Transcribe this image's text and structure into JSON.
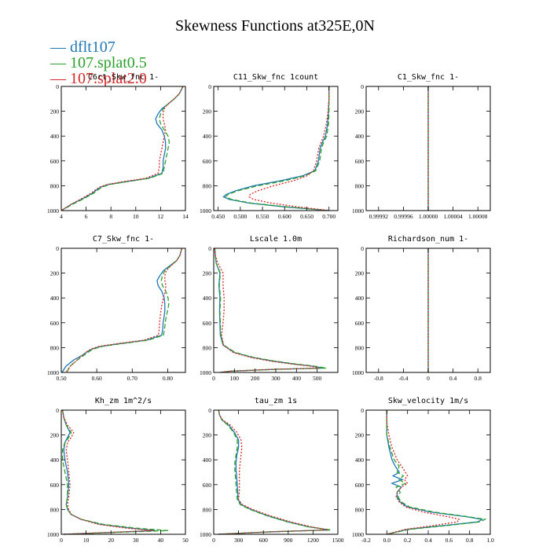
{
  "title": "Skewness Functions at325E,0N",
  "legend": [
    {
      "label": "dflt107",
      "color": "#1f77b4",
      "dash": ""
    },
    {
      "label": "107.splat0.5",
      "color": "#2ca02c",
      "dash": "6,3"
    },
    {
      "label": "107.splat2.0",
      "color": "#d62728",
      "dash": "2,2"
    }
  ],
  "chart_data": [
    {
      "type": "line",
      "title": "C6rt_Skw_fnc  1-",
      "xlim": [
        4,
        14
      ],
      "xticks": [
        4,
        6,
        8,
        10,
        12,
        14
      ],
      "ylim": [
        1000,
        0
      ],
      "yticks": [
        0,
        200,
        400,
        600,
        800,
        1000
      ],
      "y": [
        0,
        20,
        60,
        100,
        150,
        180,
        220,
        260,
        300,
        350,
        400,
        450,
        500,
        550,
        600,
        650,
        700,
        740,
        770,
        790,
        810,
        830,
        860,
        900,
        950,
        1000
      ],
      "series": [
        {
          "name": "dflt107",
          "x": [
            13.8,
            13.7,
            13.5,
            13.1,
            12.5,
            12.1,
            11.8,
            11.6,
            11.7,
            12.1,
            12.3,
            12.4,
            12.4,
            12.3,
            12.2,
            12.2,
            12.1,
            11.0,
            9.0,
            7.8,
            7.2,
            6.9,
            6.5,
            5.8,
            4.8,
            4.0
          ]
        },
        {
          "name": "107.splat0.5",
          "x": [
            13.8,
            13.7,
            13.5,
            13.1,
            12.5,
            12.2,
            12.0,
            11.9,
            12.0,
            12.3,
            12.6,
            12.7,
            12.6,
            12.5,
            12.4,
            12.3,
            12.2,
            11.1,
            9.1,
            7.9,
            7.3,
            7.0,
            6.6,
            5.9,
            4.9,
            4.0
          ]
        },
        {
          "name": "107.splat2.0",
          "x": [
            13.8,
            13.7,
            13.5,
            13.1,
            12.5,
            12.3,
            12.2,
            12.2,
            12.3,
            12.4,
            12.3,
            12.2,
            12.1,
            12.0,
            11.9,
            11.9,
            11.8,
            10.8,
            8.8,
            7.7,
            7.1,
            6.8,
            6.4,
            5.7,
            4.8,
            4.0
          ]
        }
      ]
    },
    {
      "type": "line",
      "title": "C11_Skw_fnc  1count",
      "xlim": [
        0.44,
        0.72
      ],
      "xticks": [
        0.45,
        0.5,
        0.55,
        0.6,
        0.65,
        0.7
      ],
      "xticklabels": [
        "0.450",
        "0.500",
        "0.550",
        "0.600",
        "0.650",
        "0.700"
      ],
      "ylim": [
        1000,
        0
      ],
      "yticks": [
        0,
        200,
        400,
        600,
        800,
        1000
      ],
      "y": [
        0,
        100,
        200,
        300,
        400,
        450,
        500,
        600,
        680,
        720,
        760,
        800,
        840,
        870,
        890,
        910,
        940,
        970,
        1000
      ],
      "series": [
        {
          "name": "dflt107",
          "x": [
            0.7,
            0.7,
            0.699,
            0.697,
            0.692,
            0.685,
            0.68,
            0.676,
            0.668,
            0.64,
            0.59,
            0.53,
            0.49,
            0.468,
            0.462,
            0.475,
            0.52,
            0.6,
            0.7
          ]
        },
        {
          "name": "107.splat0.5",
          "x": [
            0.7,
            0.7,
            0.7,
            0.699,
            0.695,
            0.688,
            0.683,
            0.679,
            0.67,
            0.645,
            0.6,
            0.54,
            0.495,
            0.472,
            0.467,
            0.48,
            0.525,
            0.605,
            0.7
          ]
        },
        {
          "name": "107.splat2.0",
          "x": [
            0.7,
            0.7,
            0.698,
            0.694,
            0.688,
            0.682,
            0.677,
            0.672,
            0.665,
            0.65,
            0.62,
            0.575,
            0.54,
            0.522,
            0.52,
            0.53,
            0.57,
            0.63,
            0.7
          ]
        }
      ]
    },
    {
      "type": "line",
      "title": "C1_Skw_fnc  1-",
      "xlim": [
        0.9999,
        1.0001
      ],
      "xticks": [
        0.99992,
        0.99996,
        1.0,
        1.00004,
        1.00008
      ],
      "xticklabels": [
        "0.99992",
        "0.99996",
        "1.00000",
        "1.00004",
        "1.00008"
      ],
      "ylim": [
        1000,
        0
      ],
      "yticks": [
        0,
        200,
        400,
        600,
        800,
        1000
      ],
      "y": [
        0,
        1000
      ],
      "series": [
        {
          "name": "dflt107",
          "x": [
            1.0,
            1.0
          ]
        },
        {
          "name": "107.splat0.5",
          "x": [
            1.0,
            1.0
          ]
        },
        {
          "name": "107.splat2.0",
          "x": [
            1.0,
            1.0
          ]
        }
      ]
    },
    {
      "type": "line",
      "title": "C7_Skw_fnc  1-",
      "xlim": [
        0.5,
        0.85
      ],
      "xticks": [
        0.5,
        0.6,
        0.7,
        0.8
      ],
      "xticklabels": [
        "0.50",
        "0.60",
        "0.70",
        "0.80"
      ],
      "ylim": [
        1000,
        0
      ],
      "yticks": [
        0,
        200,
        400,
        600,
        800,
        1000
      ],
      "y": [
        0,
        20,
        60,
        100,
        150,
        180,
        220,
        260,
        300,
        350,
        400,
        450,
        500,
        550,
        600,
        650,
        700,
        740,
        770,
        790,
        810,
        830,
        860,
        900,
        950,
        1000
      ],
      "series": [
        {
          "name": "dflt107",
          "x": [
            0.84,
            0.838,
            0.834,
            0.825,
            0.802,
            0.788,
            0.778,
            0.77,
            0.773,
            0.784,
            0.79,
            0.792,
            0.792,
            0.79,
            0.787,
            0.786,
            0.783,
            0.74,
            0.66,
            0.612,
            0.588,
            0.575,
            0.56,
            0.535,
            0.513,
            0.502
          ]
        },
        {
          "name": "107.splat0.5",
          "x": [
            0.84,
            0.838,
            0.834,
            0.825,
            0.804,
            0.792,
            0.785,
            0.782,
            0.785,
            0.795,
            0.801,
            0.803,
            0.8,
            0.796,
            0.793,
            0.791,
            0.788,
            0.745,
            0.665,
            0.616,
            0.592,
            0.579,
            0.565,
            0.545,
            0.525,
            0.515
          ]
        },
        {
          "name": "107.splat2.0",
          "x": [
            0.84,
            0.838,
            0.834,
            0.825,
            0.806,
            0.796,
            0.792,
            0.792,
            0.795,
            0.793,
            0.788,
            0.784,
            0.781,
            0.779,
            0.777,
            0.776,
            0.774,
            0.733,
            0.653,
            0.607,
            0.585,
            0.573,
            0.56,
            0.545,
            0.525,
            0.513
          ]
        }
      ]
    },
    {
      "type": "line",
      "title": "Lscale  1.0m",
      "xlim": [
        0,
        600
      ],
      "xticks": [
        0,
        100,
        200,
        300,
        400,
        500
      ],
      "ylim": [
        1000,
        0
      ],
      "yticks": [
        0,
        200,
        400,
        600,
        800,
        1000
      ],
      "y": [
        0,
        60,
        120,
        200,
        300,
        400,
        500,
        600,
        700,
        780,
        840,
        880,
        910,
        935,
        950,
        965,
        975,
        990,
        1000
      ],
      "series": [
        {
          "name": "dflt107",
          "x": [
            5,
            8,
            12,
            30,
            25,
            30,
            28,
            30,
            32,
            45,
            100,
            190,
            290,
            400,
            480,
            530,
            300,
            80,
            30
          ]
        },
        {
          "name": "107.splat0.5",
          "x": [
            5,
            8,
            12,
            32,
            27,
            33,
            30,
            32,
            34,
            48,
            105,
            195,
            300,
            410,
            490,
            545,
            310,
            85,
            30
          ]
        },
        {
          "name": "107.splat2.0",
          "x": [
            5,
            8,
            20,
            45,
            45,
            50,
            50,
            45,
            38,
            47,
            95,
            180,
            280,
            390,
            470,
            510,
            280,
            75,
            30
          ]
        }
      ]
    },
    {
      "type": "line",
      "title": "Richardson_num  1-",
      "xlim": [
        -1.0,
        1.0
      ],
      "xticks": [
        -0.8,
        -0.4,
        0,
        0.4,
        0.8
      ],
      "xticklabels": [
        "-0.8",
        "-0.4",
        "0",
        "0.4",
        "0.8"
      ],
      "ylim": [
        1000,
        0
      ],
      "yticks": [
        0,
        200,
        400,
        600,
        800,
        1000
      ],
      "y": [
        0,
        1000
      ],
      "series": [
        {
          "name": "dflt107",
          "x": [
            0,
            0
          ]
        },
        {
          "name": "107.splat0.5",
          "x": [
            0,
            0
          ]
        },
        {
          "name": "107.splat2.0",
          "x": [
            0,
            0
          ]
        }
      ]
    },
    {
      "type": "line",
      "title": "Kh_zm   1m^2/s",
      "xlim": [
        0,
        50
      ],
      "xticks": [
        0,
        10,
        20,
        30,
        40,
        50
      ],
      "ylim": [
        1000,
        0
      ],
      "yticks": [
        0,
        200,
        400,
        600,
        800,
        1000
      ],
      "y": [
        0,
        60,
        120,
        180,
        220,
        260,
        320,
        400,
        500,
        600,
        700,
        760,
        800,
        840,
        880,
        920,
        950,
        970,
        985,
        1000
      ],
      "series": [
        {
          "name": "dflt107",
          "x": [
            0.5,
            1,
            2,
            3.5,
            2.5,
            1.5,
            1,
            1.5,
            2.5,
            3,
            2.5,
            2,
            2.5,
            4,
            8,
            16,
            28,
            38,
            20,
            1
          ]
        },
        {
          "name": "107.splat0.5",
          "x": [
            0.5,
            1,
            2,
            4,
            3,
            1.5,
            0.5,
            0.5,
            1.5,
            2.5,
            2.5,
            2,
            2.5,
            4,
            8,
            17,
            30,
            43,
            22,
            1
          ]
        },
        {
          "name": "107.splat2.0",
          "x": [
            0.5,
            1,
            2.5,
            5,
            4,
            2.5,
            2,
            2.5,
            3,
            3.5,
            3,
            2.5,
            3,
            4,
            8,
            15,
            26,
            37,
            19,
            1
          ]
        }
      ]
    },
    {
      "type": "line",
      "title": "tau_zm   1s",
      "xlim": [
        0,
        1500
      ],
      "xticks": [
        0,
        300,
        600,
        900,
        1200,
        1500
      ],
      "ylim": [
        1000,
        0
      ],
      "yticks": [
        0,
        200,
        400,
        600,
        800,
        1000
      ],
      "y": [
        0,
        40,
        80,
        120,
        180,
        240,
        300,
        360,
        420,
        480,
        560,
        650,
        720,
        760,
        800,
        850,
        900,
        940,
        965,
        980,
        1000
      ],
      "series": [
        {
          "name": "dflt107",
          "x": [
            60,
            70,
            100,
            180,
            250,
            300,
            300,
            280,
            270,
            270,
            280,
            290,
            295,
            330,
            450,
            650,
            900,
            1150,
            1400,
            700,
            50
          ]
        },
        {
          "name": "107.splat0.5",
          "x": [
            60,
            70,
            100,
            170,
            240,
            285,
            285,
            270,
            255,
            255,
            265,
            275,
            285,
            320,
            440,
            640,
            890,
            1140,
            1420,
            720,
            50
          ]
        },
        {
          "name": "107.splat2.0",
          "x": [
            60,
            70,
            110,
            200,
            280,
            330,
            340,
            330,
            320,
            310,
            310,
            310,
            300,
            345,
            470,
            680,
            930,
            1180,
            1380,
            690,
            50
          ]
        }
      ]
    },
    {
      "type": "line",
      "title": "Skw_velocity   1m/s",
      "xlim": [
        -0.2,
        1.0
      ],
      "xticks": [
        -0.2,
        0,
        0.2,
        0.4,
        0.6,
        0.8,
        1.0
      ],
      "xticklabels": [
        "-0.2",
        "0.0",
        "0.2",
        "0.4",
        "0.6",
        "0.8",
        "1.0"
      ],
      "ylim": [
        1000,
        0
      ],
      "yticks": [
        0,
        200,
        400,
        600,
        800,
        1000
      ],
      "y": [
        0,
        100,
        200,
        300,
        400,
        450,
        500,
        530,
        560,
        590,
        620,
        660,
        700,
        740,
        780,
        820,
        860,
        880,
        900,
        930,
        960,
        1000
      ],
      "series": [
        {
          "name": "dflt107",
          "x": [
            0,
            0,
            0,
            0.02,
            0.05,
            0.08,
            0.12,
            0.06,
            0.15,
            0.05,
            0.14,
            0.1,
            0.1,
            0.13,
            0.2,
            0.42,
            0.78,
            0.92,
            0.88,
            0.55,
            0.2,
            0
          ]
        },
        {
          "name": "107.splat0.5",
          "x": [
            0,
            0,
            0,
            0.03,
            0.07,
            0.12,
            0.1,
            0.16,
            0.12,
            0.18,
            0.09,
            0.13,
            0.11,
            0.14,
            0.22,
            0.45,
            0.8,
            0.95,
            0.9,
            0.58,
            0.22,
            0
          ]
        },
        {
          "name": "107.splat2.0",
          "x": [
            0,
            0,
            0.02,
            0.05,
            0.1,
            0.14,
            0.18,
            0.2,
            0.17,
            0.2,
            0.14,
            0.1,
            0.09,
            0.12,
            0.18,
            0.35,
            0.6,
            0.7,
            0.68,
            0.45,
            0.18,
            0
          ]
        }
      ]
    }
  ]
}
